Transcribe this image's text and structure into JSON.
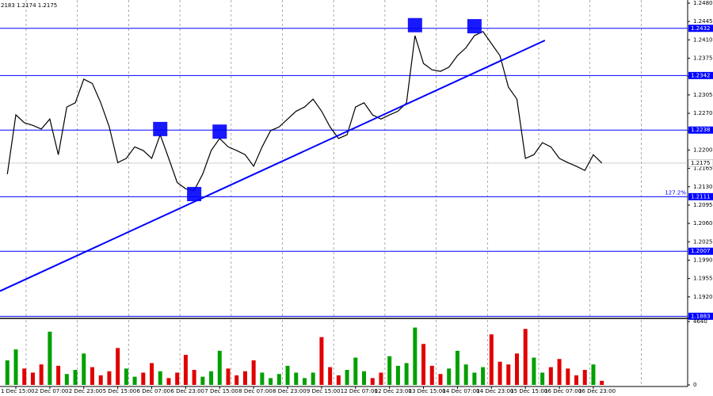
{
  "chart_data": [
    {
      "type": "line",
      "header": "2183 1.2174 1.2175",
      "color": "#000000",
      "categories": [
        null,
        "1 Dec 15:00",
        null,
        null,
        null,
        "2 Dec 07:00",
        null,
        null,
        null,
        "2 Dec 23:00",
        null,
        null,
        null,
        "5 Dec 15:00",
        null,
        null,
        null,
        "6 Dec 07:00",
        null,
        null,
        null,
        "6 Dec 23:00",
        null,
        null,
        null,
        "7 Dec 15:00",
        null,
        null,
        null,
        "8 Dec 07:00",
        null,
        null,
        null,
        "8 Dec 23:00",
        null,
        null,
        null,
        "9 Dec 15:00",
        null,
        null,
        null,
        "12 Dec 07:00",
        null,
        null,
        null,
        "12 Dec 23:00",
        null,
        null,
        null,
        "13 Dec 15:00",
        null,
        null,
        null,
        "14 Dec 07:00",
        null,
        null,
        null,
        "14 Dec 23:00",
        null,
        null,
        null,
        "15 Dec 15:00",
        null,
        null,
        null,
        "16 Dec 07:00",
        null,
        null,
        null,
        "16 Dec 23:00",
        null
      ],
      "values": [
        1.2154,
        1.2267,
        1.2252,
        1.2247,
        1.224,
        1.2259,
        1.2191,
        1.2282,
        1.229,
        1.2335,
        1.2327,
        1.229,
        1.2244,
        1.2176,
        1.2184,
        1.2206,
        1.2199,
        1.2184,
        1.2229,
        1.2184,
        1.2138,
        1.2126,
        1.2123,
        1.2154,
        1.2199,
        1.2222,
        1.2206,
        1.2199,
        1.2191,
        1.2169,
        1.2206,
        1.2237,
        1.2244,
        1.2259,
        1.2274,
        1.2282,
        1.2297,
        1.2274,
        1.2244,
        1.2222,
        1.2229,
        1.2282,
        1.229,
        1.2267,
        1.2259,
        1.2267,
        1.2274,
        1.229,
        1.2418,
        1.2365,
        1.2353,
        1.235,
        1.2358,
        1.238,
        1.2395,
        1.2418,
        1.2426,
        1.2403,
        1.238,
        1.232,
        1.2297,
        1.2184,
        1.2191,
        1.2214,
        1.2206,
        1.2184,
        1.2176,
        1.2169,
        1.2161,
        1.2191,
        1.2175
      ],
      "ylim": [
        1.1882,
        1.2486
      ],
      "yticks": [
        {
          "value": 1.248,
          "label": "1.2480"
        },
        1.2445,
        {
          "value": 1.241,
          "label": "1.2410"
        },
        1.2375,
        {
          "value": 1.234,
          "label": "1.2340"
        },
        1.2305,
        {
          "value": 1.227,
          "label": "1.2270"
        },
        1.2235,
        {
          "value": 1.22,
          "label": "1.2200"
        },
        1.2165,
        {
          "value": 1.213,
          "label": "1.2130"
        },
        1.2095,
        {
          "value": 1.206,
          "label": "1.2060"
        },
        1.2025,
        {
          "value": 1.199,
          "label": "1.1990"
        },
        1.1955,
        {
          "value": 1.192,
          "label": "1.1920"
        }
      ],
      "levels": [
        1.2432,
        1.2342,
        1.2238,
        1.2111,
        1.2007,
        1.1883
      ],
      "level_color": "#0000ff",
      "current_price": 1.2175,
      "fib_label": "127.2%",
      "trendline": {
        "x": [
          -0.87,
          63.3
        ],
        "values": [
          1.1931,
          1.2409
        ]
      },
      "signals": {
        "x": [
          18,
          25,
          22,
          48,
          55
        ],
        "values": [
          1.224,
          1.2235,
          1.2116,
          1.2438,
          1.2436
        ]
      }
    },
    {
      "type": "bar",
      "values": [
        1800,
        2600,
        1200,
        900,
        1500,
        3900,
        1400,
        800,
        1100,
        2300,
        1300,
        700,
        1000,
        2700,
        1200,
        600,
        900,
        1600,
        1000,
        500,
        900,
        2200,
        1100,
        600,
        1000,
        2500,
        1200,
        700,
        1000,
        1800,
        900,
        500,
        800,
        1400,
        900,
        500,
        900,
        3500,
        1300,
        700,
        1100,
        2000,
        1000,
        500,
        900,
        2100,
        1400,
        1600,
        4200,
        3000,
        1400,
        800,
        1200,
        2500,
        1500,
        900,
        1300,
        3700,
        1700,
        1500,
        2300,
        4100,
        2000,
        900,
        1300,
        1900,
        1200,
        700,
        1100,
        1500,
        300
      ],
      "up_color": "#00a000",
      "down_color": "#e00000",
      "ylim": [
        0,
        4640
      ],
      "yticks": [
        0,
        4640
      ]
    }
  ]
}
